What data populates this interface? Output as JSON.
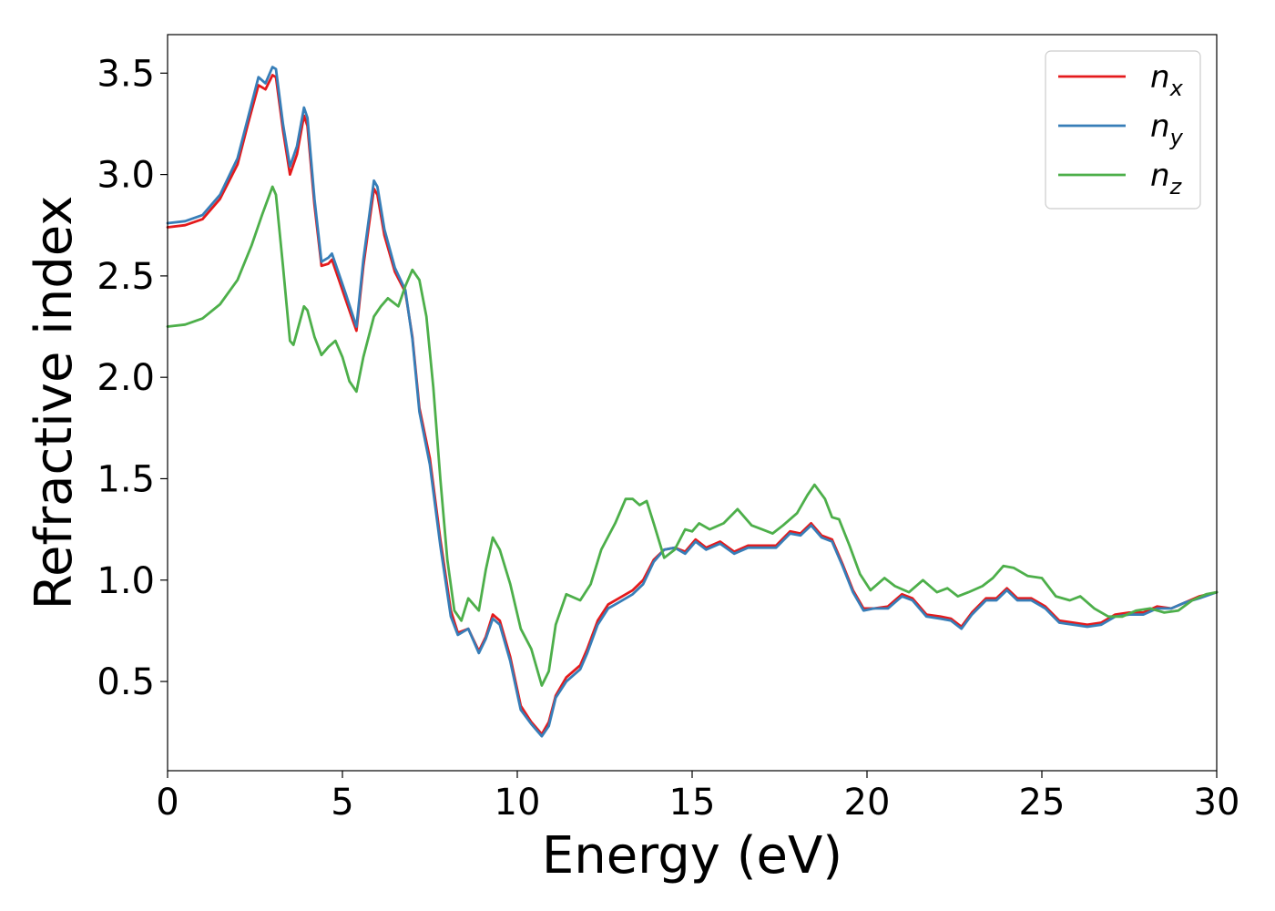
{
  "chart_data": {
    "type": "line",
    "title": "",
    "xlabel": "Energy (eV)",
    "ylabel": "Refractive index",
    "xlim": [
      0,
      30
    ],
    "ylim": [
      0.06,
      3.69
    ],
    "xticks": [
      0,
      5,
      10,
      15,
      20,
      25,
      30
    ],
    "xtick_labels": [
      "0",
      "5",
      "10",
      "15",
      "20",
      "25",
      "30"
    ],
    "yticks": [
      0.5,
      1.0,
      1.5,
      2.0,
      2.5,
      3.0,
      3.5
    ],
    "ytick_labels": [
      "0.5",
      "1.0",
      "1.5",
      "2.0",
      "2.5",
      "3.0",
      "3.5"
    ],
    "grid": false,
    "legend_position": "top-right",
    "series": [
      {
        "name": "n_x",
        "label_main": "n",
        "label_sub": "x",
        "color": "#e41a1c",
        "points": [
          [
            0,
            2.74
          ],
          [
            0.5,
            2.75
          ],
          [
            1,
            2.78
          ],
          [
            1.5,
            2.88
          ],
          [
            2,
            3.05
          ],
          [
            2.3,
            3.25
          ],
          [
            2.6,
            3.44
          ],
          [
            2.8,
            3.42
          ],
          [
            3.0,
            3.49
          ],
          [
            3.1,
            3.48
          ],
          [
            3.3,
            3.22
          ],
          [
            3.5,
            3.0
          ],
          [
            3.7,
            3.1
          ],
          [
            3.9,
            3.29
          ],
          [
            4.0,
            3.24
          ],
          [
            4.2,
            2.85
          ],
          [
            4.4,
            2.55
          ],
          [
            4.6,
            2.56
          ],
          [
            4.7,
            2.58
          ],
          [
            4.9,
            2.48
          ],
          [
            5.1,
            2.38
          ],
          [
            5.4,
            2.23
          ],
          [
            5.6,
            2.55
          ],
          [
            5.9,
            2.93
          ],
          [
            6.0,
            2.9
          ],
          [
            6.2,
            2.7
          ],
          [
            6.5,
            2.52
          ],
          [
            6.8,
            2.42
          ],
          [
            7.0,
            2.2
          ],
          [
            7.2,
            1.85
          ],
          [
            7.5,
            1.6
          ],
          [
            7.8,
            1.2
          ],
          [
            8.1,
            0.85
          ],
          [
            8.3,
            0.74
          ],
          [
            8.6,
            0.76
          ],
          [
            8.9,
            0.65
          ],
          [
            9.1,
            0.72
          ],
          [
            9.3,
            0.83
          ],
          [
            9.5,
            0.8
          ],
          [
            9.8,
            0.62
          ],
          [
            10.1,
            0.38
          ],
          [
            10.4,
            0.3
          ],
          [
            10.7,
            0.24
          ],
          [
            10.9,
            0.3
          ],
          [
            11.1,
            0.43
          ],
          [
            11.4,
            0.52
          ],
          [
            11.8,
            0.58
          ],
          [
            12.0,
            0.66
          ],
          [
            12.3,
            0.8
          ],
          [
            12.6,
            0.88
          ],
          [
            12.9,
            0.91
          ],
          [
            13.3,
            0.95
          ],
          [
            13.6,
            1.0
          ],
          [
            13.9,
            1.1
          ],
          [
            14.2,
            1.15
          ],
          [
            14.5,
            1.16
          ],
          [
            14.8,
            1.14
          ],
          [
            15.1,
            1.2
          ],
          [
            15.4,
            1.16
          ],
          [
            15.8,
            1.19
          ],
          [
            16.2,
            1.14
          ],
          [
            16.6,
            1.17
          ],
          [
            17.0,
            1.17
          ],
          [
            17.4,
            1.17
          ],
          [
            17.8,
            1.24
          ],
          [
            18.1,
            1.23
          ],
          [
            18.4,
            1.28
          ],
          [
            18.7,
            1.22
          ],
          [
            19.0,
            1.2
          ],
          [
            19.3,
            1.08
          ],
          [
            19.6,
            0.95
          ],
          [
            19.9,
            0.86
          ],
          [
            20.2,
            0.86
          ],
          [
            20.6,
            0.87
          ],
          [
            21.0,
            0.93
          ],
          [
            21.3,
            0.91
          ],
          [
            21.7,
            0.83
          ],
          [
            22.1,
            0.82
          ],
          [
            22.4,
            0.81
          ],
          [
            22.7,
            0.77
          ],
          [
            23.0,
            0.84
          ],
          [
            23.4,
            0.91
          ],
          [
            23.7,
            0.91
          ],
          [
            24.0,
            0.96
          ],
          [
            24.3,
            0.91
          ],
          [
            24.7,
            0.91
          ],
          [
            25.1,
            0.87
          ],
          [
            25.5,
            0.8
          ],
          [
            25.9,
            0.79
          ],
          [
            26.3,
            0.78
          ],
          [
            26.7,
            0.79
          ],
          [
            27.1,
            0.83
          ],
          [
            27.5,
            0.84
          ],
          [
            27.9,
            0.84
          ],
          [
            28.3,
            0.87
          ],
          [
            28.7,
            0.86
          ],
          [
            29.1,
            0.89
          ],
          [
            29.5,
            0.92
          ],
          [
            30,
            0.94
          ]
        ]
      },
      {
        "name": "n_y",
        "label_main": "n",
        "label_sub": "y",
        "color": "#377eb8",
        "points": [
          [
            0,
            2.76
          ],
          [
            0.5,
            2.77
          ],
          [
            1,
            2.8
          ],
          [
            1.5,
            2.9
          ],
          [
            2,
            3.08
          ],
          [
            2.3,
            3.28
          ],
          [
            2.6,
            3.48
          ],
          [
            2.8,
            3.45
          ],
          [
            3.0,
            3.53
          ],
          [
            3.1,
            3.52
          ],
          [
            3.3,
            3.25
          ],
          [
            3.5,
            3.04
          ],
          [
            3.7,
            3.14
          ],
          [
            3.9,
            3.33
          ],
          [
            4.0,
            3.28
          ],
          [
            4.2,
            2.88
          ],
          [
            4.4,
            2.57
          ],
          [
            4.6,
            2.59
          ],
          [
            4.7,
            2.61
          ],
          [
            4.9,
            2.51
          ],
          [
            5.1,
            2.41
          ],
          [
            5.4,
            2.25
          ],
          [
            5.6,
            2.58
          ],
          [
            5.9,
            2.97
          ],
          [
            6.0,
            2.94
          ],
          [
            6.2,
            2.73
          ],
          [
            6.5,
            2.54
          ],
          [
            6.8,
            2.43
          ],
          [
            7.0,
            2.19
          ],
          [
            7.2,
            1.83
          ],
          [
            7.5,
            1.57
          ],
          [
            7.8,
            1.17
          ],
          [
            8.1,
            0.82
          ],
          [
            8.3,
            0.73
          ],
          [
            8.6,
            0.76
          ],
          [
            8.9,
            0.64
          ],
          [
            9.1,
            0.71
          ],
          [
            9.3,
            0.81
          ],
          [
            9.5,
            0.78
          ],
          [
            9.8,
            0.6
          ],
          [
            10.1,
            0.36
          ],
          [
            10.4,
            0.29
          ],
          [
            10.7,
            0.23
          ],
          [
            10.9,
            0.28
          ],
          [
            11.1,
            0.42
          ],
          [
            11.4,
            0.5
          ],
          [
            11.8,
            0.56
          ],
          [
            12.0,
            0.64
          ],
          [
            12.3,
            0.78
          ],
          [
            12.6,
            0.86
          ],
          [
            12.9,
            0.89
          ],
          [
            13.3,
            0.93
          ],
          [
            13.6,
            0.98
          ],
          [
            13.9,
            1.09
          ],
          [
            14.2,
            1.15
          ],
          [
            14.5,
            1.16
          ],
          [
            14.8,
            1.13
          ],
          [
            15.1,
            1.19
          ],
          [
            15.4,
            1.15
          ],
          [
            15.8,
            1.18
          ],
          [
            16.2,
            1.13
          ],
          [
            16.6,
            1.16
          ],
          [
            17.0,
            1.16
          ],
          [
            17.4,
            1.16
          ],
          [
            17.8,
            1.23
          ],
          [
            18.1,
            1.22
          ],
          [
            18.4,
            1.27
          ],
          [
            18.7,
            1.21
          ],
          [
            19.0,
            1.19
          ],
          [
            19.3,
            1.07
          ],
          [
            19.6,
            0.94
          ],
          [
            19.9,
            0.85
          ],
          [
            20.2,
            0.86
          ],
          [
            20.6,
            0.86
          ],
          [
            21.0,
            0.92
          ],
          [
            21.3,
            0.9
          ],
          [
            21.7,
            0.82
          ],
          [
            22.1,
            0.81
          ],
          [
            22.4,
            0.8
          ],
          [
            22.7,
            0.76
          ],
          [
            23.0,
            0.83
          ],
          [
            23.4,
            0.9
          ],
          [
            23.7,
            0.9
          ],
          [
            24.0,
            0.95
          ],
          [
            24.3,
            0.9
          ],
          [
            24.7,
            0.9
          ],
          [
            25.1,
            0.86
          ],
          [
            25.5,
            0.79
          ],
          [
            25.9,
            0.78
          ],
          [
            26.3,
            0.77
          ],
          [
            26.7,
            0.78
          ],
          [
            27.1,
            0.82
          ],
          [
            27.5,
            0.83
          ],
          [
            27.9,
            0.83
          ],
          [
            28.3,
            0.86
          ],
          [
            28.7,
            0.86
          ],
          [
            29.1,
            0.89
          ],
          [
            29.5,
            0.91
          ],
          [
            30,
            0.94
          ]
        ]
      },
      {
        "name": "n_z",
        "label_main": "n",
        "label_sub": "z",
        "color": "#4daf4a",
        "points": [
          [
            0,
            2.25
          ],
          [
            0.5,
            2.26
          ],
          [
            1,
            2.29
          ],
          [
            1.5,
            2.36
          ],
          [
            2,
            2.48
          ],
          [
            2.4,
            2.65
          ],
          [
            2.7,
            2.8
          ],
          [
            3.0,
            2.94
          ],
          [
            3.1,
            2.9
          ],
          [
            3.3,
            2.55
          ],
          [
            3.5,
            2.18
          ],
          [
            3.6,
            2.16
          ],
          [
            3.9,
            2.35
          ],
          [
            4.0,
            2.33
          ],
          [
            4.2,
            2.2
          ],
          [
            4.4,
            2.11
          ],
          [
            4.6,
            2.15
          ],
          [
            4.8,
            2.18
          ],
          [
            5.0,
            2.1
          ],
          [
            5.2,
            1.98
          ],
          [
            5.4,
            1.93
          ],
          [
            5.6,
            2.1
          ],
          [
            5.9,
            2.3
          ],
          [
            6.1,
            2.35
          ],
          [
            6.3,
            2.39
          ],
          [
            6.6,
            2.35
          ],
          [
            6.8,
            2.45
          ],
          [
            7.0,
            2.53
          ],
          [
            7.2,
            2.48
          ],
          [
            7.4,
            2.3
          ],
          [
            7.6,
            1.95
          ],
          [
            7.8,
            1.5
          ],
          [
            8.0,
            1.1
          ],
          [
            8.2,
            0.85
          ],
          [
            8.4,
            0.8
          ],
          [
            8.6,
            0.91
          ],
          [
            8.9,
            0.85
          ],
          [
            9.1,
            1.05
          ],
          [
            9.3,
            1.21
          ],
          [
            9.5,
            1.15
          ],
          [
            9.8,
            0.98
          ],
          [
            10.1,
            0.76
          ],
          [
            10.4,
            0.66
          ],
          [
            10.7,
            0.48
          ],
          [
            10.9,
            0.55
          ],
          [
            11.1,
            0.78
          ],
          [
            11.4,
            0.93
          ],
          [
            11.8,
            0.9
          ],
          [
            12.1,
            0.98
          ],
          [
            12.4,
            1.15
          ],
          [
            12.8,
            1.28
          ],
          [
            13.1,
            1.4
          ],
          [
            13.3,
            1.4
          ],
          [
            13.5,
            1.37
          ],
          [
            13.7,
            1.39
          ],
          [
            13.9,
            1.28
          ],
          [
            14.2,
            1.11
          ],
          [
            14.5,
            1.15
          ],
          [
            14.8,
            1.25
          ],
          [
            15.0,
            1.24
          ],
          [
            15.2,
            1.28
          ],
          [
            15.5,
            1.25
          ],
          [
            15.9,
            1.28
          ],
          [
            16.3,
            1.35
          ],
          [
            16.7,
            1.27
          ],
          [
            17.0,
            1.25
          ],
          [
            17.3,
            1.23
          ],
          [
            17.6,
            1.27
          ],
          [
            18.0,
            1.33
          ],
          [
            18.3,
            1.42
          ],
          [
            18.5,
            1.47
          ],
          [
            18.8,
            1.4
          ],
          [
            19.0,
            1.31
          ],
          [
            19.2,
            1.3
          ],
          [
            19.5,
            1.17
          ],
          [
            19.8,
            1.03
          ],
          [
            20.1,
            0.95
          ],
          [
            20.5,
            1.01
          ],
          [
            20.8,
            0.97
          ],
          [
            21.2,
            0.94
          ],
          [
            21.6,
            1.0
          ],
          [
            22.0,
            0.94
          ],
          [
            22.3,
            0.96
          ],
          [
            22.6,
            0.92
          ],
          [
            22.9,
            0.94
          ],
          [
            23.3,
            0.97
          ],
          [
            23.6,
            1.01
          ],
          [
            23.9,
            1.07
          ],
          [
            24.2,
            1.06
          ],
          [
            24.6,
            1.02
          ],
          [
            25.0,
            1.01
          ],
          [
            25.4,
            0.92
          ],
          [
            25.8,
            0.9
          ],
          [
            26.1,
            0.92
          ],
          [
            26.5,
            0.86
          ],
          [
            26.9,
            0.82
          ],
          [
            27.3,
            0.82
          ],
          [
            27.7,
            0.85
          ],
          [
            28.1,
            0.86
          ],
          [
            28.5,
            0.84
          ],
          [
            28.9,
            0.85
          ],
          [
            29.3,
            0.9
          ],
          [
            29.7,
            0.93
          ],
          [
            30,
            0.94
          ]
        ]
      }
    ]
  }
}
